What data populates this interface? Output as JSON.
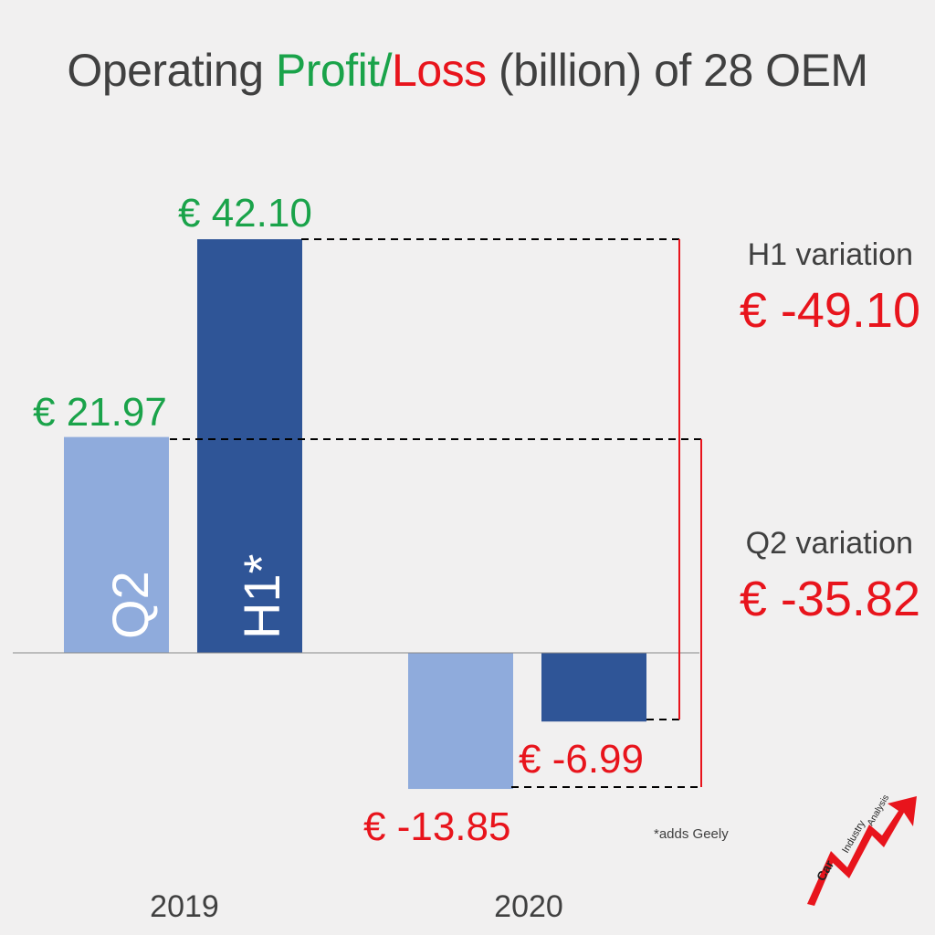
{
  "title": {
    "part1": "Operating ",
    "part2": "Profit",
    "part3": "/",
    "part4": "Loss",
    "part5": " (billion) of 28 OEM"
  },
  "colors": {
    "profit": "#1aa34a",
    "loss": "#e8141c",
    "q2_bar": "#8fabdc",
    "h1_bar": "#2f5597",
    "text": "#404040"
  },
  "chart_data": {
    "type": "bar",
    "title": "Operating Profit/Loss (billion) of 28 OEM",
    "categories": [
      "2019",
      "2020"
    ],
    "series": [
      {
        "name": "Q2",
        "values": [
          21.97,
          -13.85
        ]
      },
      {
        "name": "H1*",
        "values": [
          42.1,
          -6.99
        ]
      }
    ],
    "value_labels": {
      "q2_2019": "€ 21.97",
      "h1_2019": "€ 42.10",
      "q2_2020": "€ -13.85",
      "h1_2020": "€ -6.99"
    },
    "variations": [
      {
        "label": "H1 variation",
        "value": "€ -49.10"
      },
      {
        "label": "Q2 variation",
        "value": "€ -35.82"
      }
    ],
    "footnote": "*adds Geely",
    "grid": false,
    "legend": "none"
  },
  "logo": {
    "line1": "Car",
    "line2": "Industry",
    "line3": "Analysis"
  }
}
